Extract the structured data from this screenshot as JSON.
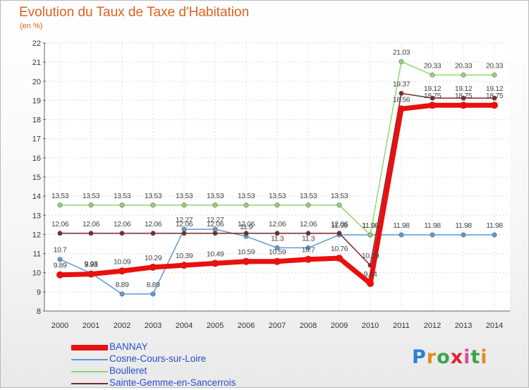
{
  "title": "Evolution du Taux de Taxe d'Habitation",
  "unit": "(en %)",
  "logo": {
    "text": "Proxiti",
    "letter_colors": [
      "#2a7fd4",
      "#e48a1c",
      "#3aa64a",
      "#e0242e",
      "#d84aa0",
      "#3aa64a",
      "#e48a1c"
    ]
  },
  "chart_data": {
    "type": "line",
    "x": [
      "2000",
      "2001",
      "2002",
      "2003",
      "2004",
      "2005",
      "2006",
      "2007",
      "2008",
      "2009",
      "2010",
      "2011",
      "2012",
      "2013",
      "2014"
    ],
    "ylim": [
      8,
      22
    ],
    "yticks": [
      8,
      9,
      10,
      11,
      12,
      13,
      14,
      15,
      16,
      17,
      18,
      19,
      20,
      21,
      22
    ],
    "grid": true,
    "legend_position": "bottom-left",
    "series": [
      {
        "name": "BANNAY",
        "color": "#e81010",
        "width": 7,
        "values": [
          9.89,
          9.93,
          10.09,
          10.29,
          10.39,
          10.49,
          10.59,
          10.59,
          10.7,
          10.76,
          9.44,
          18.56,
          18.75,
          18.75,
          18.75
        ],
        "labels": [
          "9.89",
          "9.93",
          "10.09",
          "10.29",
          "10.39",
          "10.49",
          "10.59",
          "10.59",
          "10.7",
          "10.76",
          "9.44",
          "18.56",
          "18.75",
          "18.75",
          "18.75"
        ]
      },
      {
        "name": "Cosne-Cours-sur-Loire",
        "color": "#5b9bd5",
        "width": 1.5,
        "values": [
          10.7,
          9.98,
          8.89,
          8.89,
          12.27,
          12.27,
          11.9,
          11.3,
          11.3,
          11.98,
          11.98,
          11.98,
          11.98,
          11.98,
          11.98
        ],
        "labels": [
          "10.7",
          "9.98",
          "8.89",
          "8.89",
          "12.27",
          "12.27",
          "11.9",
          "11.3",
          "11.3",
          "11.98",
          "11.98",
          "11.98",
          "11.98",
          "11.98",
          "11.98"
        ]
      },
      {
        "name": "Boulleret",
        "color": "#8fd870",
        "width": 1.5,
        "values": [
          13.53,
          13.53,
          13.53,
          13.53,
          13.53,
          13.53,
          13.53,
          13.53,
          13.53,
          13.53,
          11.98,
          21.03,
          20.33,
          20.33,
          20.33
        ],
        "labels": [
          "13.53",
          "13.53",
          "13.53",
          "13.53",
          "13.53",
          "13.53",
          "13.53",
          "13.53",
          "13.53",
          "13.53",
          "11.98",
          "21.03",
          "20.33",
          "20.33",
          "20.33"
        ]
      },
      {
        "name": "Sainte-Gemme-en-Sancerrois",
        "color": "#7a2a2a",
        "width": 1.5,
        "values": [
          12.06,
          12.06,
          12.06,
          12.06,
          12.06,
          12.06,
          12.06,
          12.06,
          12.06,
          12.06,
          10.39,
          19.37,
          19.12,
          19.12,
          19.12
        ],
        "labels": [
          "12.06",
          "12.06",
          "12.06",
          "12.06",
          "12.06",
          "12.06",
          "12.06",
          "12.06",
          "12.06",
          "12.06",
          "10.39",
          "19.37",
          "19.12",
          "19.12",
          "19.12"
        ]
      }
    ]
  }
}
